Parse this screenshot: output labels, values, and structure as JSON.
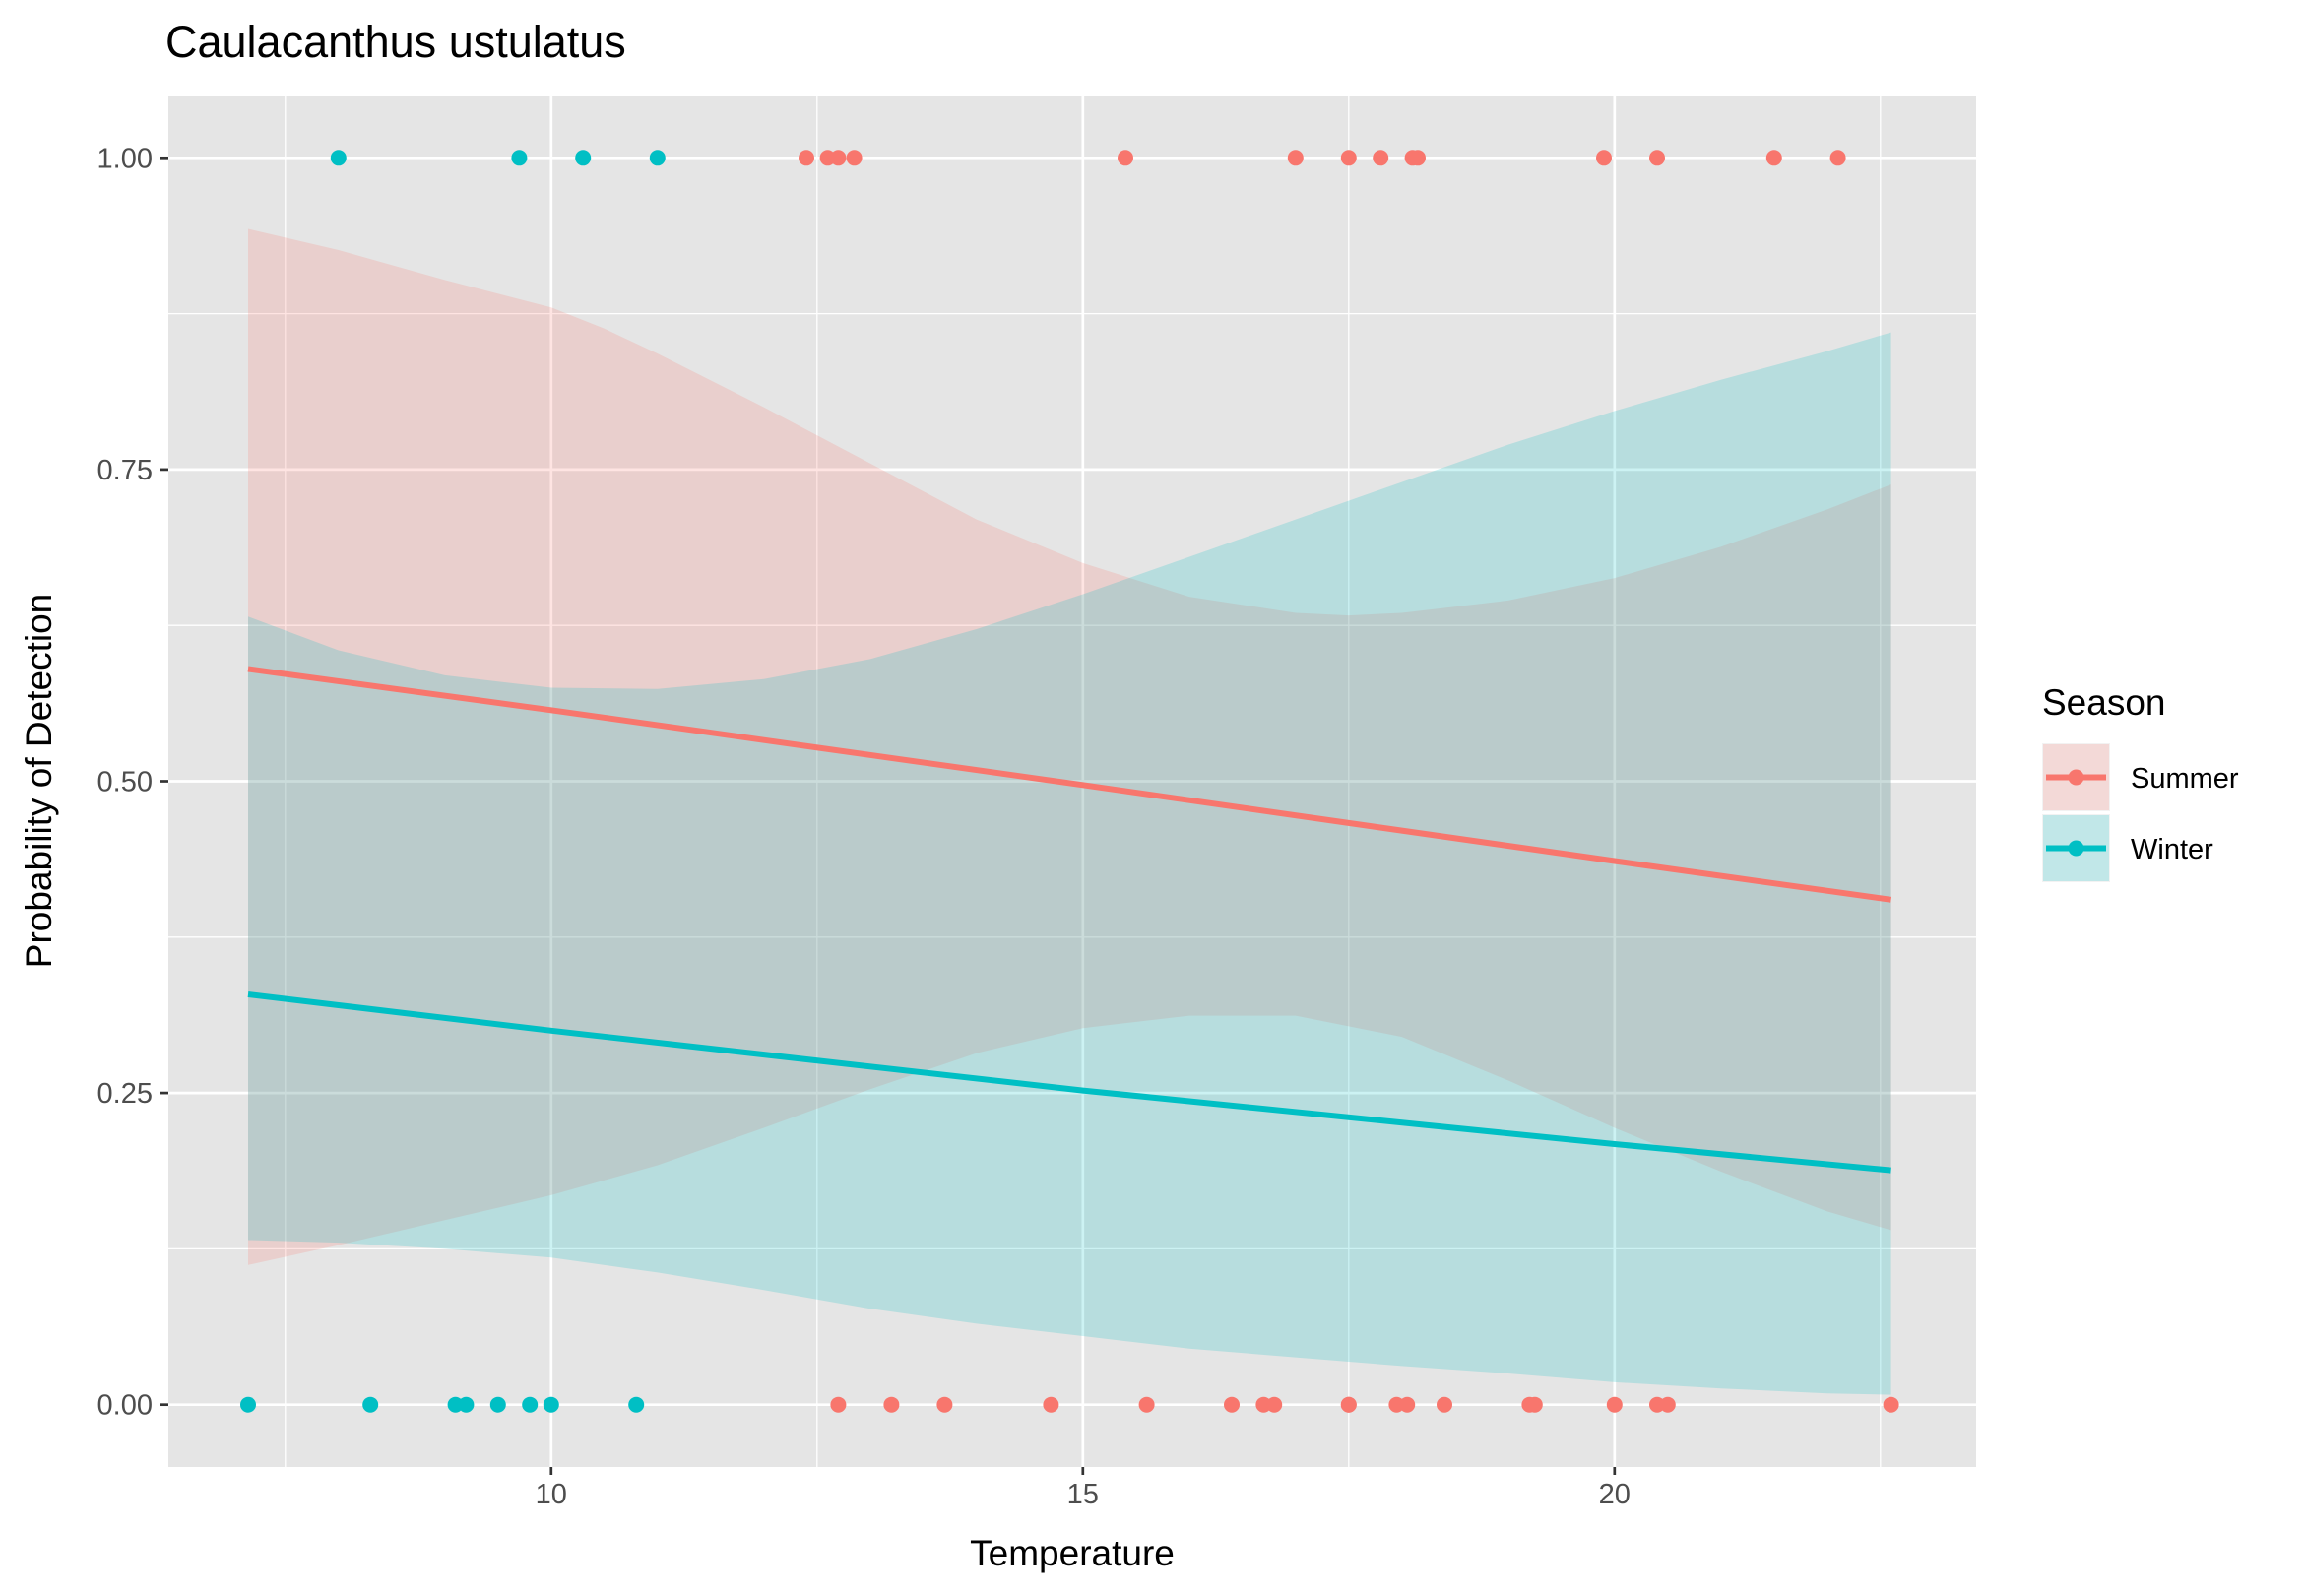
{
  "chart_data": {
    "type": "scatter",
    "title": "Caulacanthus ustulatus",
    "xlabel": "Temperature",
    "ylabel": "Probability of Detection",
    "xlim": [
      6.4,
      23.4
    ],
    "ylim": [
      -0.05,
      1.05
    ],
    "x_ticks": [
      10,
      15,
      20
    ],
    "x_tick_labels": [
      "10",
      "15",
      "20"
    ],
    "y_ticks": [
      0,
      0.25,
      0.5,
      0.75,
      1.0
    ],
    "y_tick_labels": [
      "0.00",
      "0.25",
      "0.50",
      "0.75",
      "1.00"
    ],
    "grid": true,
    "background": "#e5e5e5",
    "legend": {
      "title": "Season",
      "position": "right",
      "entries": [
        "Summer",
        "Winter"
      ]
    },
    "series": [
      {
        "name": "Summer",
        "color": "#f8766d",
        "points": {
          "x": [
            12.4,
            12.6,
            12.7,
            12.85,
            15.4,
            17.0,
            17.5,
            17.8,
            18.1,
            18.15,
            19.9,
            20.4,
            21.5,
            22.1,
            12.7,
            13.2,
            13.7,
            14.7,
            15.6,
            16.4,
            16.7,
            16.8,
            17.5,
            17.5,
            17.95,
            18.05,
            18.4,
            19.2,
            19.25,
            20.0,
            20.4,
            20.5,
            22.6
          ],
          "y": [
            1,
            1,
            1,
            1,
            1,
            1,
            1,
            1,
            1,
            1,
            1,
            1,
            1,
            1,
            0,
            0,
            0,
            0,
            0,
            0,
            0,
            0,
            0,
            0,
            0,
            0,
            0,
            0,
            0,
            0,
            0,
            0,
            0
          ]
        },
        "fit": {
          "x": [
            7.15,
            10.0,
            15.0,
            20.0,
            22.6
          ],
          "y": [
            0.59,
            0.557,
            0.497,
            0.436,
            0.405
          ]
        },
        "ci_upper": {
          "x": [
            7.15,
            8.0,
            9.0,
            10.0,
            10.5,
            11.0,
            12.0,
            13.0,
            14.0,
            15.0,
            16.0,
            17.0,
            17.5,
            18.0,
            19.0,
            20.0,
            21.0,
            22.0,
            22.6
          ],
          "y": [
            0.943,
            0.926,
            0.902,
            0.88,
            0.863,
            0.843,
            0.8,
            0.755,
            0.71,
            0.675,
            0.648,
            0.635,
            0.633,
            0.635,
            0.645,
            0.663,
            0.688,
            0.718,
            0.738
          ]
        },
        "ci_lower": {
          "x": [
            7.15,
            8.0,
            9.0,
            10.0,
            11.0,
            12.0,
            13.0,
            14.0,
            15.0,
            16.0,
            17.0,
            18.0,
            19.0,
            20.0,
            21.0,
            22.0,
            22.6
          ],
          "y": [
            0.112,
            0.128,
            0.148,
            0.168,
            0.192,
            0.222,
            0.253,
            0.282,
            0.302,
            0.312,
            0.312,
            0.295,
            0.26,
            0.222,
            0.187,
            0.155,
            0.14
          ]
        }
      },
      {
        "name": "Winter",
        "color": "#00bfc4",
        "points": {
          "x": [
            8.0,
            9.7,
            10.3,
            11.0,
            7.15,
            8.3,
            9.1,
            9.2,
            9.5,
            9.8,
            10.0,
            10.8
          ],
          "y": [
            1,
            1,
            1,
            1,
            0,
            0,
            0,
            0,
            0,
            0,
            0,
            0
          ]
        },
        "fit": {
          "x": [
            7.15,
            10.0,
            15.0,
            20.0,
            22.6
          ],
          "y": [
            0.329,
            0.3,
            0.252,
            0.209,
            0.188
          ]
        },
        "ci_upper": {
          "x": [
            7.15,
            8.0,
            9.0,
            10.0,
            11.0,
            12.0,
            13.0,
            14.0,
            15.0,
            16.0,
            17.0,
            18.0,
            19.0,
            20.0,
            21.0,
            22.0,
            22.6
          ],
          "y": [
            0.632,
            0.605,
            0.585,
            0.575,
            0.574,
            0.582,
            0.598,
            0.622,
            0.65,
            0.68,
            0.71,
            0.74,
            0.77,
            0.797,
            0.822,
            0.845,
            0.86
          ]
        },
        "ci_lower": {
          "x": [
            7.15,
            8.0,
            9.0,
            10.0,
            11.0,
            12.0,
            13.0,
            14.0,
            15.0,
            16.0,
            17.0,
            18.0,
            19.0,
            20.0,
            21.0,
            22.0,
            22.6
          ],
          "y": [
            0.132,
            0.13,
            0.125,
            0.118,
            0.106,
            0.092,
            0.077,
            0.065,
            0.055,
            0.045,
            0.038,
            0.031,
            0.025,
            0.018,
            0.013,
            0.009,
            0.008
          ]
        }
      }
    ]
  }
}
